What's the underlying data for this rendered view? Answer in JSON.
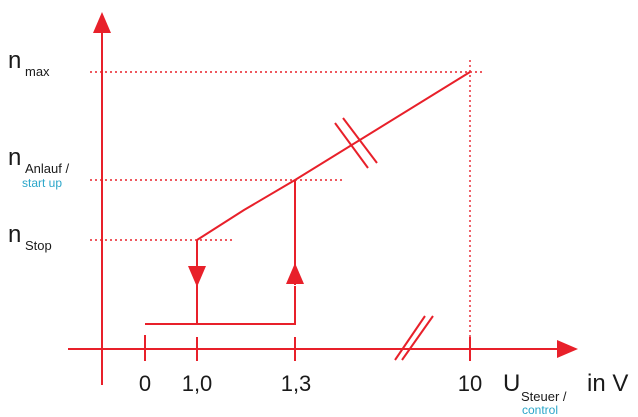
{
  "colors": {
    "line": "#e8202a",
    "text": "#1a1a1a",
    "secondary_text": "#2aa6c9"
  },
  "y_labels": {
    "nmax": {
      "symbol": "n",
      "sub": "max"
    },
    "nanlauf": {
      "symbol": "n",
      "sub": "Anlauf /",
      "sub_alt": "start up"
    },
    "nstop": {
      "symbol": "n",
      "sub": "Stop"
    }
  },
  "x_ticks": [
    "0",
    "1,0",
    "1,3",
    "10"
  ],
  "x_axis_label": {
    "symbol": "U",
    "sub": "Steuer /",
    "sub_alt": "control",
    "unit": "in V"
  }
}
